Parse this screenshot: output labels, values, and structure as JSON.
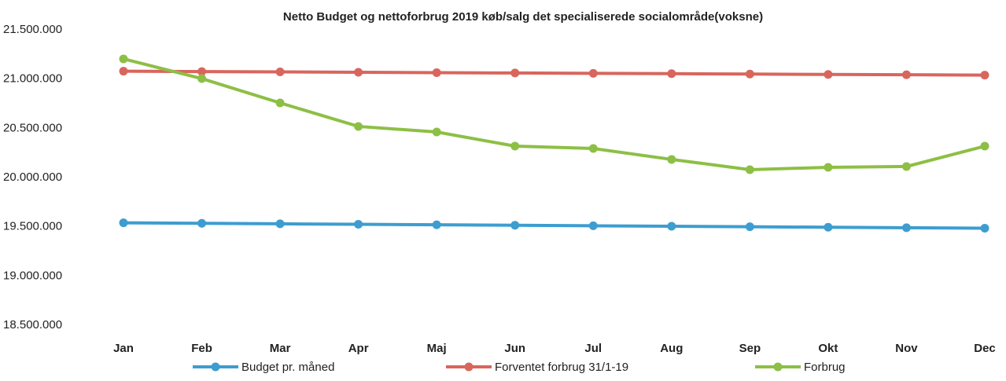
{
  "chart_data": {
    "type": "line",
    "title": "Netto Budget og nettoforbrug 2019 køb/salg det specialiserede socialområde(voksne)",
    "categories": [
      "Jan",
      "Feb",
      "Mar",
      "Apr",
      "Maj",
      "Jun",
      "Jul",
      "Aug",
      "Sep",
      "Okt",
      "Nov",
      "Dec"
    ],
    "series": [
      {
        "name": "Budget pr. måned",
        "color": "#3d9dd0",
        "values": [
          19540000,
          19535000,
          19530000,
          19525000,
          19520000,
          19515000,
          19510000,
          19505000,
          19500000,
          19495000,
          19490000,
          19485000
        ]
      },
      {
        "name": "Forventet forbrug 31/1-19",
        "color": "#d8665d",
        "values": [
          21080000,
          21076000,
          21073000,
          21069000,
          21065000,
          21062000,
          21058000,
          21055000,
          21051000,
          21047000,
          21044000,
          21040000
        ]
      },
      {
        "name": "Forbrug",
        "color": "#8dbf45",
        "values": [
          21205000,
          21005000,
          20758000,
          20519000,
          20463000,
          20319000,
          20295000,
          20184000,
          20080000,
          20104000,
          20112000,
          20319000
        ]
      }
    ],
    "ylim": [
      18500000,
      21500000
    ],
    "yticks": [
      {
        "value": 18500000,
        "label": "18.500.000"
      },
      {
        "value": 19000000,
        "label": "19.000.000"
      },
      {
        "value": 19500000,
        "label": "19.500.000"
      },
      {
        "value": 20000000,
        "label": "20.000.000"
      },
      {
        "value": 20500000,
        "label": "20.500.000"
      },
      {
        "value": 21000000,
        "label": "21.000.000"
      },
      {
        "value": 21500000,
        "label": "21.500.000"
      }
    ],
    "grid": false,
    "legend": "bottom"
  }
}
